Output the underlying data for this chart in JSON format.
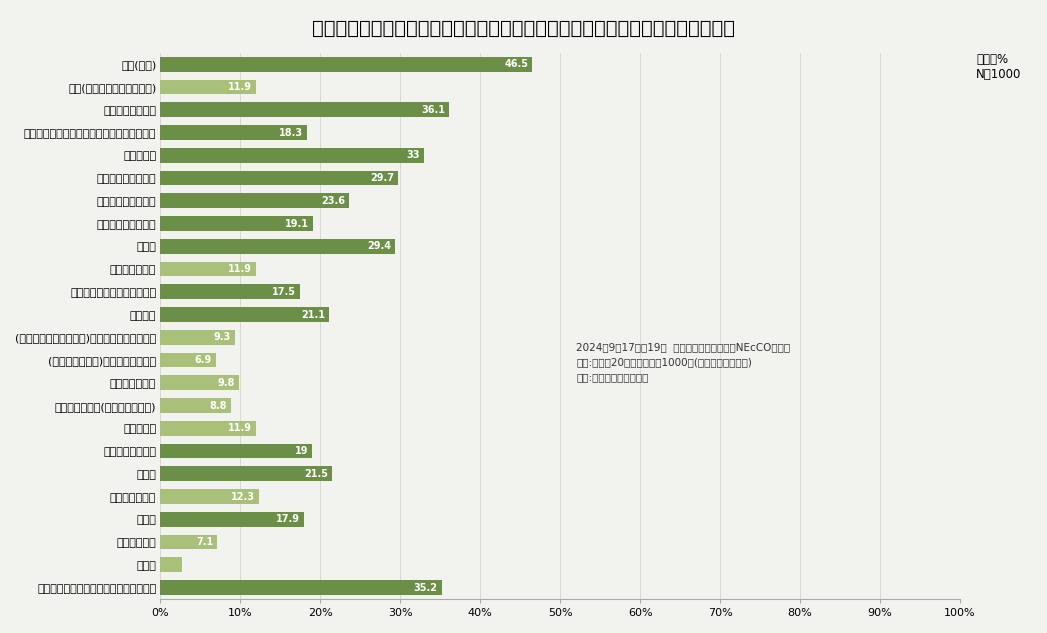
{
  "title": "災害時に避難するときに持ち出せる防災グッズとして、何を用意していますか？",
  "categories": [
    "飲料(真水)",
    "飲料(糖分や塩分を含むもの)",
    "食事になる非常食",
    "飴や羊羹など、当面のカロリーが摂れるもの",
    "ティッシュ",
    "ウェットティッシュ",
    "トイレットペーパー",
    "携帯用の簡易トイレ",
    "タオル",
    "生理用ナプキン",
    "下着の替え／使い捨て用下着",
    "歯ブラシ",
    "(水なしで歯磨きできる)歯磨き粉・液体歯磨き",
    "(水なしで洗える)ドライシャンプー",
    "洗顔料・顔拭き",
    "スキンケア用品(保湿ケアのもの)",
    "からだ拭き",
    "消毒用アルコール",
    "絆創膏",
    "ガーゼとテープ",
    "常備薬",
    "サプリメント",
    "その他",
    "持ち出せる防災グッズは用意していない"
  ],
  "values": [
    46.5,
    11.9,
    36.1,
    18.3,
    33.0,
    29.7,
    23.6,
    19.1,
    29.4,
    11.9,
    17.5,
    21.1,
    9.3,
    6.9,
    9.8,
    8.8,
    11.9,
    19.0,
    21.5,
    12.3,
    17.9,
    7.1,
    2.7,
    35.2
  ],
  "bar_color_dark": "#6b8f47",
  "bar_color_light": "#a8c07a",
  "background_color": "#f2f2ee",
  "title_fontsize": 14,
  "annotation": "2024年9月17日～19日  株式会社ユーグレナ「NEcCO」調べ\n対象:全国の20代以上の男女1000名(年代性別均等割付)\n手法:インターネット調査",
  "note": "単位＝%\nN＝1000",
  "xlim": [
    0,
    100
  ],
  "xticks": [
    0,
    10,
    20,
    30,
    40,
    50,
    60,
    70,
    80,
    90,
    100
  ],
  "xlabel_labels": [
    "0%",
    "10%",
    "20%",
    "30%",
    "40%",
    "50%",
    "60%",
    "70%",
    "80%",
    "90%",
    "100%"
  ],
  "dark_threshold": 15.0
}
